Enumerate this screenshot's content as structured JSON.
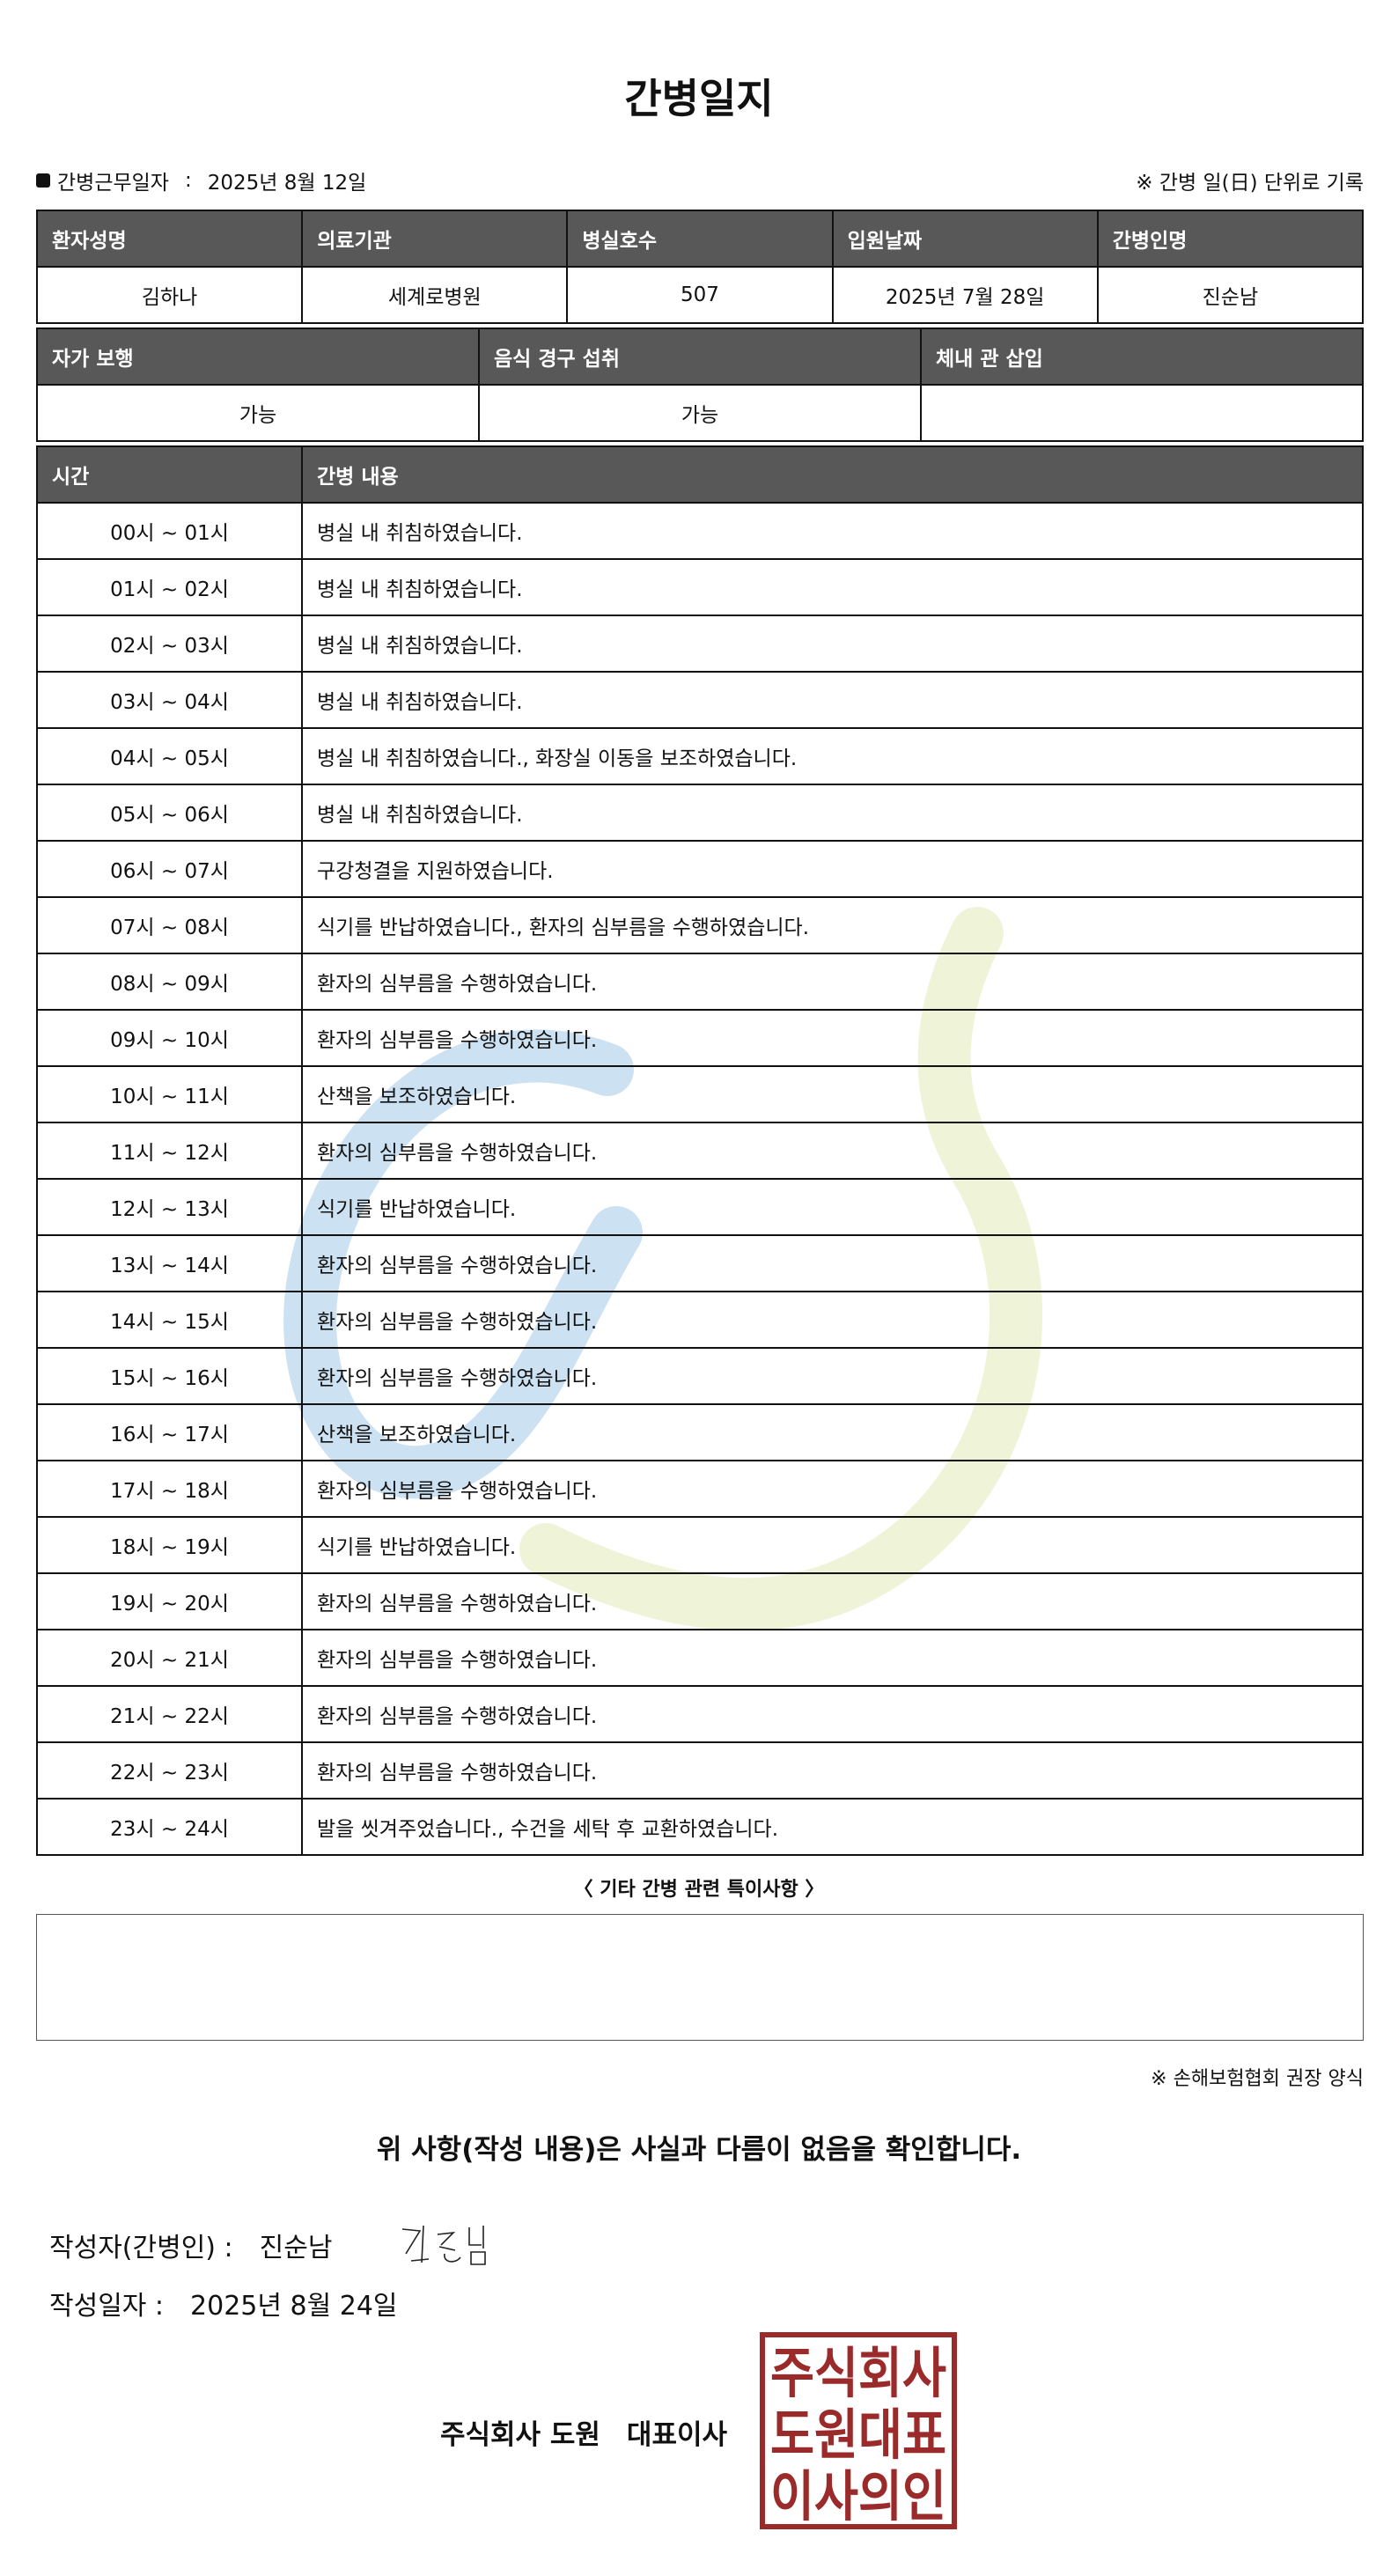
{
  "title": "간병일지",
  "work_date": {
    "label": "간병근무일자",
    "separator": ":",
    "value": "2025년 8월 12일"
  },
  "record_note": "※ 간병 일(日) 단위로 기록",
  "patient_table": {
    "headers": [
      "환자성명",
      "의료기관",
      "병실호수",
      "입원날짜",
      "간병인명"
    ],
    "values": [
      "김하나",
      "세계로병원",
      "507",
      "2025년 7월 28일",
      "진순남"
    ]
  },
  "status_table": {
    "headers": [
      "자가 보행",
      "음식 경구 섭취",
      "체내 관 삽입"
    ],
    "values": [
      "가능",
      "가능",
      ""
    ]
  },
  "log_table": {
    "headers": [
      "시간",
      "간병 내용"
    ],
    "rows": [
      {
        "time": "00시 ~ 01시",
        "content": "병실 내 취침하였습니다."
      },
      {
        "time": "01시 ~ 02시",
        "content": "병실 내 취침하였습니다."
      },
      {
        "time": "02시 ~ 03시",
        "content": "병실 내 취침하였습니다."
      },
      {
        "time": "03시 ~ 04시",
        "content": "병실 내 취침하였습니다."
      },
      {
        "time": "04시 ~ 05시",
        "content": "병실 내 취침하였습니다., 화장실 이동을 보조하였습니다."
      },
      {
        "time": "05시 ~ 06시",
        "content": "병실 내 취침하였습니다."
      },
      {
        "time": "06시 ~ 07시",
        "content": "구강청결을 지원하였습니다."
      },
      {
        "time": "07시 ~ 08시",
        "content": "식기를 반납하였습니다., 환자의 심부름을 수행하였습니다."
      },
      {
        "time": "08시 ~ 09시",
        "content": "환자의 심부름을 수행하였습니다."
      },
      {
        "time": "09시 ~ 10시",
        "content": "환자의 심부름을 수행하였습니다."
      },
      {
        "time": "10시 ~ 11시",
        "content": "산책을 보조하였습니다."
      },
      {
        "time": "11시 ~ 12시",
        "content": "환자의 심부름을 수행하였습니다."
      },
      {
        "time": "12시 ~ 13시",
        "content": "식기를 반납하였습니다."
      },
      {
        "time": "13시 ~ 14시",
        "content": "환자의 심부름을 수행하였습니다."
      },
      {
        "time": "14시 ~ 15시",
        "content": "환자의 심부름을 수행하였습니다."
      },
      {
        "time": "15시 ~ 16시",
        "content": "환자의 심부름을 수행하였습니다."
      },
      {
        "time": "16시 ~ 17시",
        "content": "산책을 보조하였습니다."
      },
      {
        "time": "17시 ~ 18시",
        "content": "환자의 심부름을 수행하였습니다."
      },
      {
        "time": "18시 ~ 19시",
        "content": "식기를 반납하였습니다."
      },
      {
        "time": "19시 ~ 20시",
        "content": "환자의 심부름을 수행하였습니다."
      },
      {
        "time": "20시 ~ 21시",
        "content": "환자의 심부름을 수행하였습니다."
      },
      {
        "time": "21시 ~ 22시",
        "content": "환자의 심부름을 수행하였습니다."
      },
      {
        "time": "22시 ~ 23시",
        "content": "환자의 심부름을 수행하였습니다."
      },
      {
        "time": "23시 ~ 24시",
        "content": "발을 씻겨주었습니다., 수건을 세탁 후 교환하였습니다."
      }
    ]
  },
  "notes": {
    "title": "〈 기타 간병 관련 특이사항 〉",
    "value": ""
  },
  "form_note": "※ 손해보험협회 권장 양식",
  "confirm": "위 사항(작성 내용)은 사실과 다름이 없음을 확인합니다.",
  "writer": {
    "label": "작성자(간병인) :",
    "name": "진순남",
    "signature": "진순남"
  },
  "write_date": {
    "label": "작성일자 :",
    "value": "2025년 8월 24일"
  },
  "company": {
    "name": "주식회사 도원",
    "role": "대표이사"
  },
  "stamp": {
    "text": [
      "주식회사",
      "도원대표",
      "이사의인"
    ],
    "color": "#9b2a2a"
  },
  "colors": {
    "header_bg": "#585858",
    "watermark_blue": "#c7def0",
    "watermark_green": "#eef3d6"
  }
}
